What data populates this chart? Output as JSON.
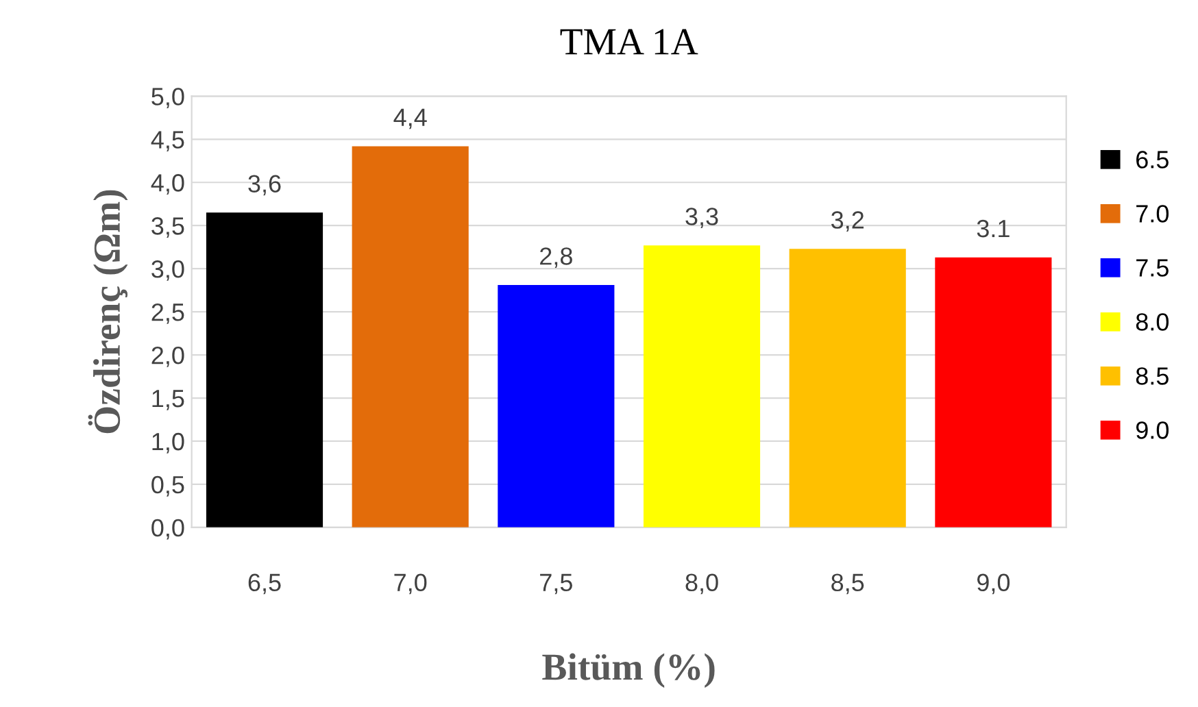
{
  "chart_data": {
    "type": "bar",
    "title": "TMA 1A",
    "xlabel": "Bitüm (%)",
    "ylabel": "Özdirenç (Ωm)",
    "categories": [
      "6,5",
      "7,0",
      "7,5",
      "8,0",
      "8,5",
      "9,0"
    ],
    "series": [
      {
        "name": "6.5",
        "color": "#000000",
        "values": [
          3.65,
          null,
          null,
          null,
          null,
          null
        ],
        "value_labels": [
          "3,6",
          null,
          null,
          null,
          null,
          null
        ]
      },
      {
        "name": "7.0",
        "color": "#e36c0a",
        "values": [
          null,
          4.42,
          null,
          null,
          null,
          null
        ],
        "value_labels": [
          null,
          "4,4",
          null,
          null,
          null,
          null
        ]
      },
      {
        "name": "7.5",
        "color": "#0000ff",
        "values": [
          null,
          null,
          2.81,
          null,
          null,
          null
        ],
        "value_labels": [
          null,
          null,
          "2,8",
          null,
          null,
          null
        ]
      },
      {
        "name": "8.0",
        "color": "#ffff00",
        "values": [
          null,
          null,
          null,
          3.27,
          null,
          null
        ],
        "value_labels": [
          null,
          null,
          null,
          "3,3",
          null,
          null
        ]
      },
      {
        "name": "8.5",
        "color": "#ffc000",
        "values": [
          null,
          null,
          null,
          null,
          3.23,
          null
        ],
        "value_labels": [
          null,
          null,
          null,
          null,
          "3,2",
          null
        ]
      },
      {
        "name": "9.0",
        "color": "#ff0000",
        "values": [
          null,
          null,
          null,
          null,
          null,
          3.13
        ],
        "value_labels": [
          null,
          null,
          null,
          null,
          null,
          "3.1"
        ]
      }
    ],
    "ylim": [
      0,
      5
    ],
    "yticks": [
      {
        "value": 0,
        "label": "0,0"
      },
      {
        "value": 0.5,
        "label": "0,5"
      },
      {
        "value": 1,
        "label": "1,0"
      },
      {
        "value": 1.5,
        "label": "1,5"
      },
      {
        "value": 2,
        "label": "2,0"
      },
      {
        "value": 2.5,
        "label": "2,5"
      },
      {
        "value": 3,
        "label": "3,0"
      },
      {
        "value": 3.5,
        "label": "3,5"
      },
      {
        "value": 4,
        "label": "4,0"
      },
      {
        "value": 4.5,
        "label": "4,5"
      },
      {
        "value": 5,
        "label": "5,0"
      }
    ],
    "grid": "y",
    "legend": "right"
  }
}
